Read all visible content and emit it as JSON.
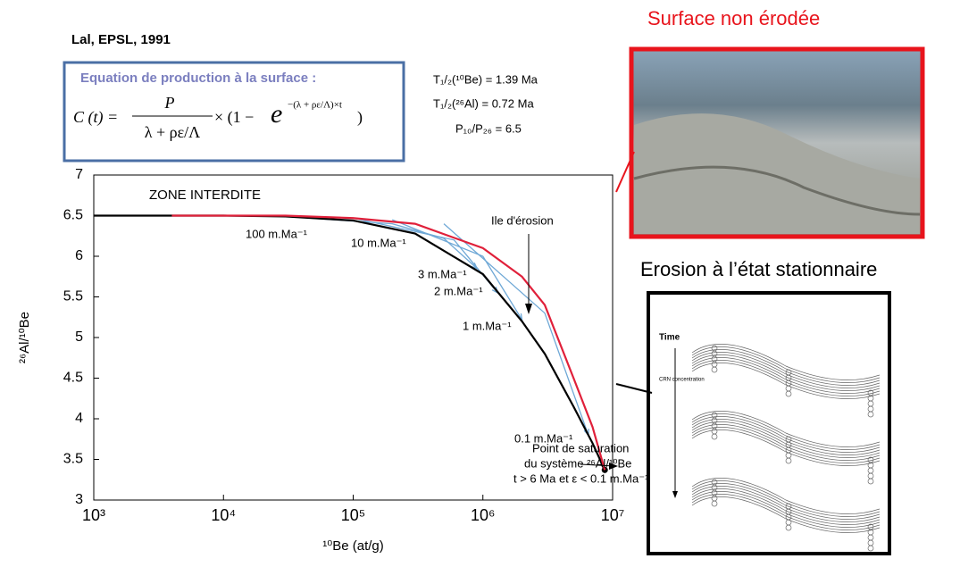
{
  "slide": {
    "reference": "Lal, EPSL, 1991",
    "equation": {
      "title": "Equation de production à la surface :",
      "lhs": "C  (t) =",
      "numerator": "P",
      "denominator": "λ  + ρε/Λ",
      "factor": "× (1 − ",
      "base": "e",
      "exponent": "−(λ  + ρε/Λ)×t",
      "close": ")"
    },
    "constants": [
      "T₁/₂(¹⁰Be) = 1.39 Ma",
      "T₁/₂(²⁶Al) = 0.72 Ma",
      "P₁₀/P₂₆ = 6.5"
    ],
    "photo_title": "Surface non érodée",
    "diagram_title": "Erosion à l’état stationnaire",
    "diagram_labels": [
      "Time",
      "CRN concentration"
    ]
  },
  "chart_data": {
    "type": "line",
    "x_label": "¹⁰Be (at/g)",
    "y_label": "²⁶Al/¹⁰Be",
    "log_x": true,
    "xlim": [
      1000,
      10000000
    ],
    "ylim": [
      3,
      7
    ],
    "xticks": [
      {
        "value": 1000,
        "label": "10³"
      },
      {
        "value": 10000,
        "label": "10⁴"
      },
      {
        "value": 100000,
        "label": "10⁵"
      },
      {
        "value": 1000000,
        "label": "10⁶"
      },
      {
        "value": 10000000,
        "label": "10⁷"
      }
    ],
    "yticks": [
      3,
      3.5,
      4,
      4.5,
      5,
      5.5,
      6,
      6.5,
      7
    ],
    "series": [
      {
        "color": "#6fa8d6",
        "x": [
          30000,
          200000,
          500000,
          900000
        ],
        "values": [
          6.49,
          6.4,
          6.22,
          5.85
        ]
      },
      {
        "color": "#6fa8d6",
        "x": [
          100000,
          600000,
          1300000
        ],
        "values": [
          6.47,
          6.2,
          5.55
        ]
      },
      {
        "color": "#6fa8d6",
        "x": [
          200000,
          1000000,
          2000000
        ],
        "values": [
          6.45,
          6.0,
          5.22
        ]
      },
      {
        "color": "#6fa8d6",
        "x": [
          500000,
          3000000,
          6500000
        ],
        "values": [
          6.4,
          5.3,
          3.8
        ]
      },
      {
        "color": "#000000",
        "x": [
          1000,
          4000,
          10000,
          30000,
          100000,
          300000,
          1000000,
          2000000,
          3000000,
          5000000,
          7000000,
          8700000
        ],
        "values": [
          6.5,
          6.5,
          6.5,
          6.49,
          6.44,
          6.28,
          5.78,
          5.2,
          4.8,
          4.15,
          3.7,
          3.37
        ]
      },
      {
        "color": "#e0203a",
        "x": [
          4000,
          10000,
          30000,
          100000,
          300000,
          1000000,
          2000000,
          3000000,
          5000000,
          7000000,
          8700000
        ],
        "values": [
          6.5,
          6.5,
          6.5,
          6.47,
          6.4,
          6.1,
          5.75,
          5.4,
          4.5,
          3.9,
          3.37
        ]
      }
    ],
    "annotations": [
      "ZONE INTERDITE",
      "100 m.Ma⁻¹",
      "10 m.Ma⁻¹",
      "3 m.Ma⁻¹",
      "2 m.Ma⁻¹",
      "1 m.Ma⁻¹",
      "0.1 m.Ma⁻¹",
      "Ile d'érosion",
      "Point de saturation",
      "du système ²⁶Al/¹⁰Be",
      "t > 6 Ma et ε < 0.1 m.Ma⁻¹"
    ]
  }
}
